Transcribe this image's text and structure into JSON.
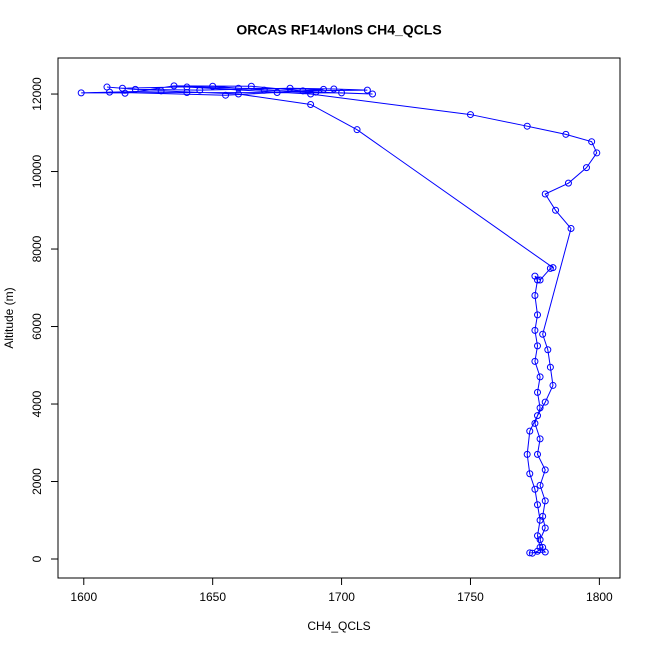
{
  "chart_data": {
    "type": "line",
    "title": "ORCAS RF14vlonS CH4_QCLS",
    "xlabel": "CH4_QCLS",
    "ylabel": "Altitude (m)",
    "x": [
      1774,
      1776,
      1778,
      1777,
      1779,
      1778,
      1779,
      1777,
      1779,
      1776,
      1777,
      1775,
      1777,
      1776,
      1777,
      1775,
      1776,
      1775,
      1776,
      1775,
      1776,
      1775,
      1777,
      1781,
      1782,
      1706,
      1688,
      1660,
      1630,
      1599,
      1640,
      1700,
      1712,
      1690,
      1670,
      1650,
      1615,
      1609,
      1620,
      1645,
      1680,
      1697,
      1710,
      1685,
      1665,
      1635,
      1616,
      1610,
      1655,
      1675,
      1693,
      1660,
      1640,
      1688,
      1750,
      1772,
      1787,
      1797,
      1799,
      1795,
      1788,
      1779,
      1783,
      1789,
      1778,
      1780,
      1781,
      1782,
      1779,
      1776,
      1773,
      1772,
      1773,
      1775,
      1776,
      1777,
      1776,
      1777,
      1779,
      1773
    ],
    "series": [
      {
        "color": "#0000ff",
        "values": [
          150,
          200,
          300,
          500,
          800,
          1100,
          1500,
          1900,
          2300,
          2700,
          3100,
          3500,
          3900,
          4300,
          4700,
          5100,
          5500,
          5900,
          6300,
          6800,
          7200,
          7300,
          7200,
          7500,
          7520,
          11080,
          11730,
          12000,
          12080,
          12030,
          12040,
          12030,
          12000,
          12050,
          12100,
          12200,
          12150,
          12180,
          12120,
          12100,
          12150,
          12130,
          12100,
          12080,
          12200,
          12210,
          12020,
          12050,
          11970,
          12040,
          12120,
          12150,
          12180,
          12000,
          11470,
          11170,
          10960,
          10770,
          10480,
          10100,
          9700,
          9420,
          9000,
          8530,
          5800,
          5400,
          4950,
          4480,
          4050,
          3700,
          3300,
          2700,
          2200,
          1800,
          1400,
          1000,
          600,
          300,
          180,
          160
        ]
      }
    ],
    "xlim": [
      1590,
      1808
    ],
    "ylim": [
      -490,
      12930
    ],
    "xticks": [
      1600,
      1650,
      1700,
      1750,
      1800
    ],
    "yticks": [
      0,
      2000,
      4000,
      6000,
      8000,
      10000,
      12000
    ]
  }
}
